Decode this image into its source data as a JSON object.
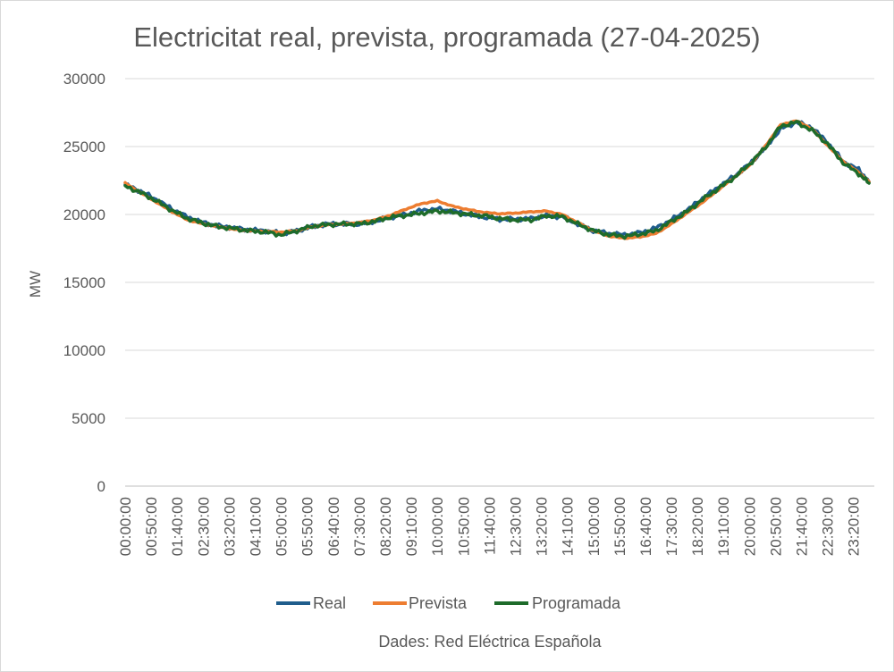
{
  "chart_data": {
    "type": "line",
    "title": "Electricitat real, prevista, programada (27-04-2025)",
    "xlabel": "",
    "ylabel": "MW",
    "ylim": [
      0,
      30000
    ],
    "yticks": [
      "0",
      "5000",
      "10000",
      "15000",
      "20000",
      "25000",
      "30000"
    ],
    "x_tick_labels": [
      "00:00:00",
      "00:50:00",
      "01:40:00",
      "02:30:00",
      "03:20:00",
      "04:10:00",
      "05:00:00",
      "05:50:00",
      "06:40:00",
      "07:30:00",
      "08:20:00",
      "09:10:00",
      "10:00:00",
      "10:50:00",
      "11:40:00",
      "12:30:00",
      "13:20:00",
      "14:10:00",
      "15:00:00",
      "15:50:00",
      "16:40:00",
      "17:30:00",
      "18:20:00",
      "19:10:00",
      "20:00:00",
      "20:50:00",
      "21:40:00",
      "22:30:00",
      "23:20:00"
    ],
    "grid": true,
    "legend_position": "bottom",
    "source_note": "Dades: Red Eléctrica Española",
    "series": [
      {
        "name": "Real",
        "color": "#1f5d8c",
        "hours": [
          0,
          0.5,
          1,
          1.5,
          2,
          2.5,
          3,
          3.5,
          4,
          4.5,
          5,
          5.5,
          6,
          6.5,
          7,
          7.5,
          8,
          8.5,
          9,
          9.5,
          10,
          10.5,
          11,
          11.5,
          12,
          12.5,
          13,
          13.5,
          14,
          14.5,
          15,
          15.5,
          16,
          16.5,
          17,
          17.5,
          18,
          18.5,
          19,
          19.5,
          20,
          20.5,
          21,
          21.5,
          22,
          22.5,
          23,
          23.5,
          23.83
        ],
        "values": [
          22200,
          21700,
          21100,
          20400,
          19800,
          19400,
          19150,
          19000,
          18850,
          18800,
          18600,
          18800,
          19100,
          19300,
          19300,
          19300,
          19500,
          19800,
          20000,
          20300,
          20400,
          20250,
          20000,
          19800,
          19650,
          19650,
          19700,
          19900,
          19850,
          19300,
          18800,
          18600,
          18500,
          18650,
          19000,
          19600,
          20300,
          21200,
          22000,
          22800,
          23700,
          24900,
          26300,
          26800,
          26400,
          25300,
          23900,
          23300,
          22400
        ]
      },
      {
        "name": "Prevista",
        "color": "#ed7d31",
        "hours": [
          0,
          0.5,
          1,
          1.5,
          2,
          2.5,
          3,
          3.5,
          4,
          4.5,
          5,
          5.5,
          6,
          6.5,
          7,
          7.5,
          8,
          8.5,
          9,
          9.5,
          10,
          10.5,
          11,
          11.5,
          12,
          12.5,
          13,
          13.5,
          14,
          14.5,
          15,
          15.5,
          16,
          16.5,
          17,
          17.5,
          18,
          18.5,
          19,
          19.5,
          20,
          20.5,
          21,
          21.5,
          22,
          22.5,
          23,
          23.5,
          23.83
        ],
        "values": [
          22300,
          21600,
          20900,
          20200,
          19600,
          19300,
          19100,
          18900,
          18800,
          18750,
          18700,
          18800,
          19100,
          19250,
          19300,
          19400,
          19600,
          19950,
          20400,
          20800,
          21000,
          20600,
          20350,
          20150,
          20050,
          20100,
          20200,
          20250,
          20000,
          19400,
          18800,
          18400,
          18250,
          18350,
          18600,
          19300,
          20100,
          20900,
          21800,
          22700,
          23600,
          25000,
          26600,
          26900,
          26300,
          25100,
          23900,
          23100,
          22400
        ]
      },
      {
        "name": "Programada",
        "color": "#1e6b2a",
        "hours": [
          0,
          0.5,
          1,
          1.5,
          2,
          2.5,
          3,
          3.5,
          4,
          4.5,
          5,
          5.5,
          6,
          6.5,
          7,
          7.5,
          8,
          8.5,
          9,
          9.5,
          10,
          10.5,
          11,
          11.5,
          12,
          12.5,
          13,
          13.5,
          14,
          14.5,
          15,
          15.5,
          16,
          16.5,
          17,
          17.5,
          18,
          18.5,
          19,
          19.5,
          20,
          20.5,
          21,
          21.5,
          22,
          22.5,
          23,
          23.5,
          23.83
        ],
        "values": [
          22100,
          21600,
          21000,
          20300,
          19700,
          19350,
          19100,
          18950,
          18800,
          18700,
          18500,
          18800,
          19150,
          19250,
          19300,
          19300,
          19500,
          19800,
          19950,
          20100,
          20250,
          20150,
          20000,
          19900,
          19700,
          19600,
          19600,
          19900,
          19850,
          19300,
          18800,
          18500,
          18400,
          18550,
          18800,
          19500,
          20200,
          21100,
          21900,
          22700,
          23700,
          24900,
          26500,
          26800,
          26200,
          25200,
          23800,
          23000,
          22300
        ]
      }
    ]
  }
}
